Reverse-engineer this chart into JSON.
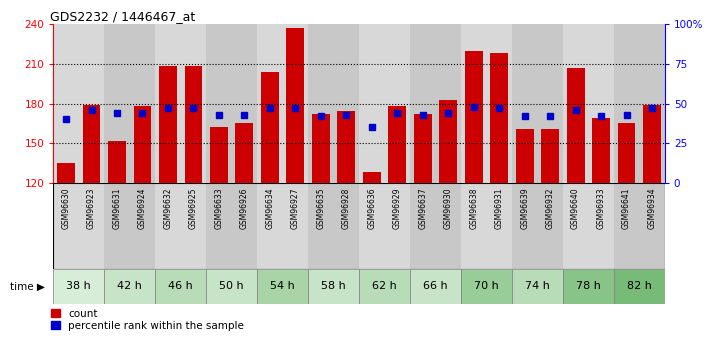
{
  "title": "GDS2232 / 1446467_at",
  "samples": [
    "GSM96630",
    "GSM96923",
    "GSM96631",
    "GSM96924",
    "GSM96632",
    "GSM96925",
    "GSM96633",
    "GSM96926",
    "GSM96634",
    "GSM96927",
    "GSM96635",
    "GSM96928",
    "GSM96636",
    "GSM96929",
    "GSM96637",
    "GSM96930",
    "GSM96638",
    "GSM96931",
    "GSM96639",
    "GSM96932",
    "GSM96640",
    "GSM96933",
    "GSM96641",
    "GSM96934"
  ],
  "counts": [
    135,
    179,
    152,
    178,
    208,
    208,
    162,
    165,
    204,
    237,
    172,
    174,
    128,
    178,
    172,
    183,
    220,
    218,
    161,
    161,
    207,
    169,
    165,
    179
  ],
  "percentiles": [
    40,
    46,
    44,
    44,
    47,
    47,
    43,
    43,
    47,
    47,
    42,
    43,
    35,
    44,
    43,
    44,
    48,
    47,
    42,
    42,
    46,
    42,
    43,
    47
  ],
  "time_groups": [
    {
      "label": "38 h",
      "start": 0,
      "end": 2
    },
    {
      "label": "42 h",
      "start": 2,
      "end": 4
    },
    {
      "label": "46 h",
      "start": 4,
      "end": 6
    },
    {
      "label": "50 h",
      "start": 6,
      "end": 8
    },
    {
      "label": "54 h",
      "start": 8,
      "end": 10
    },
    {
      "label": "58 h",
      "start": 10,
      "end": 12
    },
    {
      "label": "62 h",
      "start": 12,
      "end": 14
    },
    {
      "label": "66 h",
      "start": 14,
      "end": 16
    },
    {
      "label": "70 h",
      "start": 16,
      "end": 18
    },
    {
      "label": "74 h",
      "start": 18,
      "end": 20
    },
    {
      "label": "78 h",
      "start": 20,
      "end": 22
    },
    {
      "label": "82 h",
      "start": 22,
      "end": 24
    }
  ],
  "time_group_colors": [
    "#d8edd8",
    "#c8e4c8",
    "#b8dbb8",
    "#c8e4c8",
    "#a8d4a8",
    "#c8e4c8",
    "#b8dbb8",
    "#c8e4c8",
    "#98cc98",
    "#b8dbb8",
    "#88c488",
    "#78bb78"
  ],
  "ymin": 120,
  "ymax": 240,
  "bar_color": "#cc0000",
  "dot_color": "#0000cc",
  "col_bg_even": "#d8d8d8",
  "col_bg_odd": "#c8c8c8"
}
